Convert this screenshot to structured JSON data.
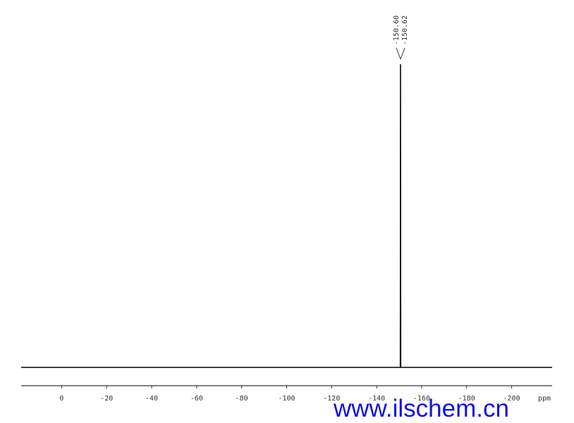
{
  "chart_data": {
    "type": "line",
    "x": [
      18,
      -150.72,
      -150.62,
      -150.6,
      -150.5,
      -218
    ],
    "values": [
      0,
      0,
      100,
      100,
      0,
      0
    ],
    "color": "#000000",
    "xlim": [
      18,
      -218
    ],
    "ylim": [
      0,
      100
    ],
    "xticks": [
      0,
      -20,
      -40,
      -60,
      -80,
      -100,
      -120,
      -140,
      -160,
      -180,
      -200
    ],
    "x_unit": "ppm",
    "peaks": [
      {
        "value": -150.6,
        "label": "-150.60"
      },
      {
        "value": -150.62,
        "label": "-150.62"
      }
    ],
    "watermark": "www.ilschem.cn"
  }
}
